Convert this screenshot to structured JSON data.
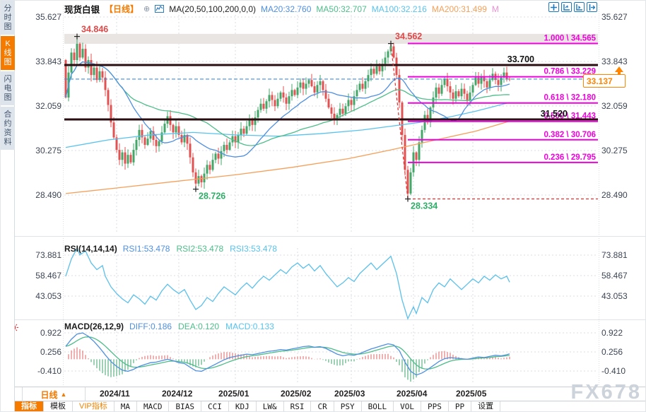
{
  "window": {
    "watermark": "FX678"
  },
  "sidebar": {
    "items": [
      {
        "label": "分时图",
        "active": false
      },
      {
        "label": "K线图",
        "active": true
      },
      {
        "label": "闪电图",
        "active": false
      },
      {
        "label": "合约资料",
        "active": false
      }
    ]
  },
  "header": {
    "symbol": "现货白银",
    "period_tag": "【日线】",
    "add_icon": "⊕",
    "ma_title": "MA(20,50,100,200,0,0)",
    "ma_values": [
      {
        "label": "MA20:32.760",
        "color": "#4f8fe0"
      },
      {
        "label": "MA50:32.707",
        "color": "#4dbd8a"
      },
      {
        "label": "MA100:32.216",
        "color": "#58c3ee"
      },
      {
        "label": "MA200:31.499",
        "color": "#f5a05a"
      },
      {
        "label": "M",
        "color": "#ee8fd4"
      }
    ],
    "icons": [
      "pan-crosshair-icon",
      "axis-zoom-icon",
      "axis-play-icon",
      "exit-right-icon"
    ]
  },
  "price_box": {
    "value": "33.137"
  },
  "rsi_header": {
    "title": "RSI(14,14,14)",
    "values": [
      {
        "label": "RSI1:53.478",
        "color": "#4f8fe0"
      },
      {
        "label": "RSI2:53.478",
        "color": "#4dbd8a"
      },
      {
        "label": "RSI3:53.478",
        "color": "#58c3ee"
      }
    ]
  },
  "macd_header": {
    "title": "MACD(26,12,9)",
    "values": [
      {
        "label": "DIFF:0.186",
        "color": "#4f8fe0"
      },
      {
        "label": "DEA:0.120",
        "color": "#4dbd8a"
      },
      {
        "label": "MACD:0.133",
        "color": "#58c3ee"
      }
    ]
  },
  "period_row": {
    "period_label": "日线",
    "arrow": "▲"
  },
  "bottom_tabs": [
    {
      "label": "指标",
      "active": true,
      "cn": true
    },
    {
      "label": "模板",
      "cn": true
    },
    {
      "label": "VIP指标",
      "vip": true,
      "cn": true
    },
    {
      "label": "MA"
    },
    {
      "label": "MACD"
    },
    {
      "label": "BIAS"
    },
    {
      "label": "CCI"
    },
    {
      "label": "KDJ"
    },
    {
      "label": "LW&"
    },
    {
      "label": "RSI"
    },
    {
      "label": "CR"
    },
    {
      "label": "PSY"
    },
    {
      "label": "BOLL"
    },
    {
      "label": "VOL"
    },
    {
      "label": "PPS"
    },
    {
      "label": "PP"
    },
    {
      "label": "设置",
      "cn": true
    }
  ],
  "colors": {
    "up": "#43a768",
    "down": "#e05352",
    "ma20": "#4f8fe0",
    "ma50": "#4dbd8a",
    "ma100": "#58c3ee",
    "ma200": "#f5a05a",
    "fib": "#f000dc",
    "sr_line": "#2a0e12",
    "current": "#3b8de0",
    "grid": "#d9dde4",
    "axis_text": "#3c4554",
    "hist_up": "#e06060",
    "hist_down": "#3aa36a",
    "rsi_line": "#5bc0ea",
    "label_high": "#e04848",
    "label_low": "#2fae68",
    "band": "#e9e5e2",
    "crash": "#e03030"
  },
  "chart_data": {
    "type": "candlestick+indicators",
    "title": "现货白银 日线",
    "main": {
      "y_ticks": [
        "35.627",
        "33.843",
        "32.059",
        "30.275",
        "28.490"
      ],
      "y_tick_vals": [
        35.627,
        33.843,
        32.059,
        30.275,
        28.49
      ],
      "first_open": 33.9,
      "closes": [
        32.4,
        33.4,
        34.2,
        33.9,
        34.55,
        34.0,
        34.35,
        33.6,
        33.9,
        33.3,
        33.6,
        33.1,
        33.45,
        33.2,
        32.7,
        32.1,
        31.4,
        30.8,
        30.3,
        29.9,
        30.2,
        29.75,
        30.1,
        29.8,
        30.3,
        30.7,
        31.1,
        30.8,
        30.5,
        30.75,
        31.05,
        30.7,
        30.45,
        30.65,
        31.0,
        31.35,
        31.65,
        31.3,
        31.0,
        31.25,
        30.9,
        30.6,
        30.9,
        30.55,
        30.0,
        29.4,
        28.95,
        29.25,
        29.0,
        29.35,
        29.7,
        29.5,
        29.9,
        30.15,
        29.95,
        30.25,
        30.5,
        30.3,
        30.6,
        30.85,
        30.6,
        30.9,
        31.15,
        30.95,
        31.25,
        31.5,
        31.3,
        31.6,
        31.9,
        32.15,
        31.95,
        32.25,
        32.5,
        32.3,
        32.05,
        32.35,
        32.6,
        32.4,
        32.15,
        32.45,
        32.7,
        32.5,
        32.8,
        33.0,
        32.75,
        32.95,
        33.1,
        32.85,
        32.6,
        32.9,
        33.05,
        32.7,
        32.35,
        32.0,
        31.75,
        31.55,
        31.7,
        31.95,
        31.75,
        32.05,
        32.3,
        32.1,
        32.45,
        32.7,
        32.95,
        32.75,
        33.05,
        33.3,
        33.55,
        33.35,
        33.65,
        33.45,
        33.75,
        34.0,
        34.25,
        34.45,
        34.0,
        33.3,
        32.2,
        30.9,
        29.5,
        28.55,
        29.4,
        30.2,
        29.9,
        30.6,
        31.1,
        31.7,
        31.4,
        32.0,
        32.4,
        32.8,
        32.55,
        32.9,
        33.15,
        32.85,
        32.6,
        32.35,
        32.65,
        32.45,
        32.75,
        32.55,
        32.3,
        32.6,
        32.9,
        33.2,
        32.95,
        33.25,
        33.05,
        32.8,
        33.1,
        33.35,
        33.1,
        32.9,
        33.2,
        33.4,
        33.15,
        33.137
      ],
      "landmarks": [
        {
          "i": 4,
          "type": "high",
          "price": 34.846,
          "label": "34.846"
        },
        {
          "i": 115,
          "type": "high",
          "price": 34.562,
          "label": "34.562"
        },
        {
          "i": 46,
          "type": "low",
          "price": 28.726,
          "label": "28.726"
        },
        {
          "i": 121,
          "type": "low",
          "price": 28.334,
          "label": "28.334"
        }
      ],
      "hlines": [
        {
          "price": 33.7,
          "label": "33.700",
          "label_x": 735
        },
        {
          "price": 31.52,
          "label": "31.520",
          "label_x": 782
        }
      ],
      "current_price": 33.137,
      "band": {
        "top": 34.95,
        "bottom": 34.55
      },
      "fib": [
        {
          "label": "1.000 \\ 34.565",
          "price": 34.565
        },
        {
          "label": "0.786 \\ 33.229",
          "price": 33.229
        },
        {
          "label": "0.618 \\ 32.180",
          "price": 32.18
        },
        {
          "label": "0.500 \\ 31.443",
          "price": 31.443
        },
        {
          "label": "0.382 \\ 30.706",
          "price": 30.706
        },
        {
          "label": "0.236 \\ 29.795",
          "price": 29.795
        }
      ],
      "fib_start_i": 121,
      "crash_line": {
        "from_i": 115,
        "from_price": 34.562,
        "to_i": 121,
        "to_price": 28.334
      },
      "ma100": [
        [
          0,
          30.4
        ],
        [
          15,
          30.7
        ],
        [
          30,
          30.9
        ],
        [
          45,
          31.0
        ],
        [
          60,
          30.9
        ],
        [
          75,
          30.85
        ],
        [
          90,
          30.95
        ],
        [
          105,
          31.1
        ],
        [
          115,
          31.25
        ],
        [
          125,
          31.4
        ],
        [
          135,
          31.6
        ],
        [
          145,
          31.85
        ],
        [
          157,
          32.2
        ]
      ],
      "ma200": [
        [
          0,
          28.55
        ],
        [
          20,
          28.8
        ],
        [
          40,
          29.05
        ],
        [
          60,
          29.3
        ],
        [
          80,
          29.6
        ],
        [
          100,
          29.95
        ],
        [
          115,
          30.3
        ],
        [
          125,
          30.55
        ],
        [
          135,
          30.8
        ],
        [
          145,
          31.05
        ],
        [
          157,
          31.45
        ]
      ]
    },
    "month_ticks": [
      {
        "label": "2024/11",
        "i": 18
      },
      {
        "label": "2024/12",
        "i": 40
      },
      {
        "label": "2025/01",
        "i": 60
      },
      {
        "label": "2025/02",
        "i": 82
      },
      {
        "label": "2025/03",
        "i": 101
      },
      {
        "label": "2025/04",
        "i": 123
      },
      {
        "label": "2025/05",
        "i": 144
      }
    ],
    "rsi": {
      "y_ticks": [
        "73.881",
        "58.467",
        "43.053"
      ],
      "y_tick_vals": [
        73.881,
        58.467,
        43.053
      ],
      "points": [
        [
          0,
          58
        ],
        [
          2,
          71
        ],
        [
          4,
          79
        ],
        [
          5,
          74
        ],
        [
          7,
          77
        ],
        [
          9,
          68
        ],
        [
          11,
          63
        ],
        [
          13,
          66
        ],
        [
          14,
          58
        ],
        [
          16,
          50
        ],
        [
          18,
          45
        ],
        [
          20,
          41
        ],
        [
          22,
          38
        ],
        [
          24,
          44
        ],
        [
          26,
          41
        ],
        [
          28,
          37
        ],
        [
          30,
          43
        ],
        [
          32,
          40
        ],
        [
          34,
          47
        ],
        [
          36,
          52
        ],
        [
          38,
          48
        ],
        [
          40,
          45
        ],
        [
          42,
          48
        ],
        [
          44,
          40
        ],
        [
          46,
          33
        ],
        [
          48,
          36
        ],
        [
          50,
          42
        ],
        [
          52,
          39
        ],
        [
          54,
          45
        ],
        [
          56,
          50
        ],
        [
          58,
          47
        ],
        [
          60,
          44
        ],
        [
          62,
          49
        ],
        [
          64,
          53
        ],
        [
          66,
          49
        ],
        [
          68,
          54
        ],
        [
          70,
          58
        ],
        [
          72,
          55
        ],
        [
          74,
          59
        ],
        [
          76,
          63
        ],
        [
          78,
          60
        ],
        [
          80,
          65
        ],
        [
          82,
          68
        ],
        [
          84,
          64
        ],
        [
          86,
          67
        ],
        [
          88,
          62
        ],
        [
          90,
          66
        ],
        [
          92,
          60
        ],
        [
          94,
          55
        ],
        [
          96,
          50
        ],
        [
          98,
          53
        ],
        [
          100,
          57
        ],
        [
          102,
          54
        ],
        [
          104,
          60
        ],
        [
          106,
          64
        ],
        [
          108,
          68
        ],
        [
          110,
          63
        ],
        [
          112,
          67
        ],
        [
          114,
          71
        ],
        [
          115,
          73
        ],
        [
          117,
          60
        ],
        [
          119,
          40
        ],
        [
          121,
          25
        ],
        [
          123,
          35
        ],
        [
          124,
          30
        ],
        [
          126,
          42
        ],
        [
          128,
          38
        ],
        [
          130,
          48
        ],
        [
          132,
          53
        ],
        [
          134,
          50
        ],
        [
          136,
          56
        ],
        [
          138,
          52
        ],
        [
          140,
          48
        ],
        [
          142,
          52
        ],
        [
          144,
          56
        ],
        [
          146,
          53
        ],
        [
          148,
          58
        ],
        [
          150,
          55
        ],
        [
          152,
          59
        ],
        [
          154,
          56
        ],
        [
          156,
          58
        ],
        [
          157,
          53.5
        ]
      ]
    },
    "macd": {
      "y_ticks": [
        "0.922",
        "0.256",
        "-0.410"
      ],
      "y_tick_vals": [
        0.922,
        0.256,
        -0.41
      ],
      "diff": [
        [
          0,
          0.45
        ],
        [
          2,
          0.7
        ],
        [
          4,
          0.88
        ],
        [
          6,
          0.92
        ],
        [
          8,
          0.8
        ],
        [
          10,
          0.62
        ],
        [
          12,
          0.4
        ],
        [
          14,
          0.15
        ],
        [
          16,
          -0.08
        ],
        [
          18,
          -0.25
        ],
        [
          20,
          -0.38
        ],
        [
          22,
          -0.42
        ],
        [
          24,
          -0.35
        ],
        [
          26,
          -0.25
        ],
        [
          28,
          -0.18
        ],
        [
          30,
          -0.12
        ],
        [
          32,
          -0.1
        ],
        [
          34,
          -0.05
        ],
        [
          36,
          0.0
        ],
        [
          38,
          -0.05
        ],
        [
          40,
          -0.12
        ],
        [
          42,
          -0.15
        ],
        [
          44,
          -0.28
        ],
        [
          46,
          -0.4
        ],
        [
          48,
          -0.42
        ],
        [
          50,
          -0.32
        ],
        [
          52,
          -0.22
        ],
        [
          54,
          -0.12
        ],
        [
          56,
          -0.02
        ],
        [
          58,
          0.06
        ],
        [
          60,
          0.1
        ],
        [
          62,
          0.14
        ],
        [
          64,
          0.18
        ],
        [
          66,
          0.16
        ],
        [
          68,
          0.2
        ],
        [
          70,
          0.24
        ],
        [
          72,
          0.28
        ],
        [
          74,
          0.3
        ],
        [
          76,
          0.34
        ],
        [
          78,
          0.32
        ],
        [
          80,
          0.36
        ],
        [
          82,
          0.4
        ],
        [
          84,
          0.44
        ],
        [
          86,
          0.46
        ],
        [
          88,
          0.42
        ],
        [
          90,
          0.44
        ],
        [
          92,
          0.38
        ],
        [
          94,
          0.28
        ],
        [
          96,
          0.18
        ],
        [
          98,
          0.12
        ],
        [
          100,
          0.16
        ],
        [
          102,
          0.14
        ],
        [
          104,
          0.2
        ],
        [
          106,
          0.28
        ],
        [
          108,
          0.36
        ],
        [
          110,
          0.42
        ],
        [
          112,
          0.48
        ],
        [
          114,
          0.54
        ],
        [
          116,
          0.5
        ],
        [
          118,
          0.3
        ],
        [
          120,
          -0.1
        ],
        [
          122,
          -0.42
        ],
        [
          124,
          -0.55
        ],
        [
          126,
          -0.48
        ],
        [
          128,
          -0.36
        ],
        [
          130,
          -0.22
        ],
        [
          132,
          -0.08
        ],
        [
          134,
          0.02
        ],
        [
          136,
          0.06
        ],
        [
          138,
          0.04
        ],
        [
          140,
          0.02
        ],
        [
          142,
          0.0
        ],
        [
          144,
          0.04
        ],
        [
          146,
          0.08
        ],
        [
          148,
          0.06
        ],
        [
          150,
          0.1
        ],
        [
          152,
          0.14
        ],
        [
          154,
          0.12
        ],
        [
          156,
          0.16
        ],
        [
          157,
          0.186
        ]
      ]
    }
  }
}
